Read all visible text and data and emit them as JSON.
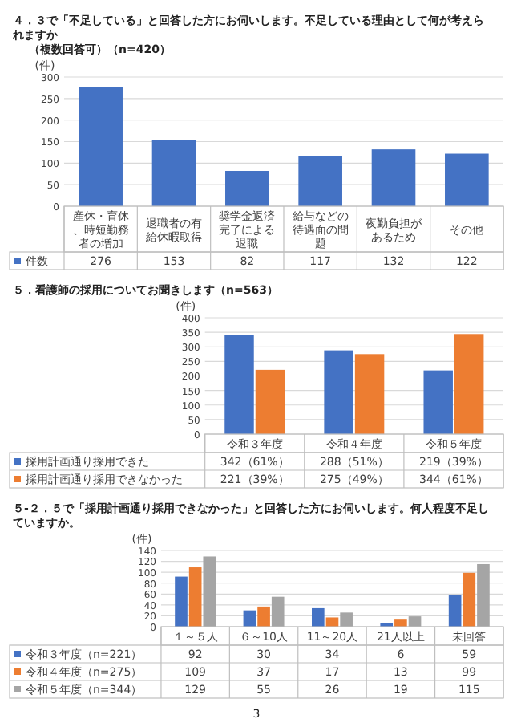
{
  "chart_data": [
    {
      "type": "bar",
      "title": "４．３で「不足している」と回答した方にお伺いします。不足している理由として何が考えられますか",
      "subtitle": "（複数回答可）（n=420）",
      "ylabel": "(件)",
      "categories": [
        "産休・育休、時短勤務者の増加",
        "退職者の有給休暇取得",
        "奨学金返済完了による退職",
        "給与などの待遇面の問題",
        "夜勤負担があるため",
        "その他"
      ],
      "series": [
        {
          "name": "件数",
          "color": "#4472c4",
          "values": [
            276,
            153,
            82,
            117,
            132,
            122
          ]
        }
      ],
      "ylim": [
        0,
        300
      ],
      "yticks": [
        0,
        50,
        100,
        150,
        200,
        250,
        300
      ],
      "grid": "y",
      "data_labels": true,
      "legend": "bottom left"
    },
    {
      "type": "bar",
      "title": "５．看護師の採用についてお聞きします（n=563）",
      "ylabel": "(件)",
      "categories": [
        "令和３年度",
        "令和４年度",
        "令和５年度"
      ],
      "series": [
        {
          "name": "採用計画通り採用できた",
          "color": "#4472c4",
          "values": [
            342,
            288,
            219
          ],
          "value_labels": [
            "342（61%）",
            "288（51%）",
            "219（39%）"
          ]
        },
        {
          "name": "採用計画通り採用できなかった",
          "color": "#ed7d31",
          "values": [
            221,
            275,
            344
          ],
          "value_labels": [
            "221（39%）",
            "275（49%）",
            "344（61%）"
          ]
        }
      ],
      "ylim": [
        0,
        400
      ],
      "yticks": [
        0,
        50,
        100,
        150,
        200,
        250,
        300,
        350,
        400
      ],
      "grid": "y",
      "legend": "bottom left"
    },
    {
      "type": "bar",
      "title": "５-２．５で「採用計画通り採用できなかった」と回答した方にお伺いします。何人程度不足していますか。",
      "ylabel": "(件)",
      "categories": [
        "１～５人",
        "６～10人",
        "11～20人",
        "21人以上",
        "未回答"
      ],
      "series": [
        {
          "name": "令和３年度（n=221）",
          "color": "#4472c4",
          "values": [
            92,
            30,
            34,
            6,
            59
          ]
        },
        {
          "name": "令和４年度（n=275）",
          "color": "#ed7d31",
          "values": [
            109,
            37,
            17,
            13,
            99
          ]
        },
        {
          "name": "令和５年度（n=344）",
          "color": "#a5a5a5",
          "values": [
            129,
            55,
            26,
            19,
            115
          ]
        }
      ],
      "ylim": [
        0,
        140
      ],
      "yticks": [
        0,
        20,
        40,
        60,
        80,
        100,
        120,
        140
      ],
      "grid": "y",
      "data_labels": true,
      "legend": "bottom left",
      "annotations": [
        "3"
      ]
    }
  ]
}
